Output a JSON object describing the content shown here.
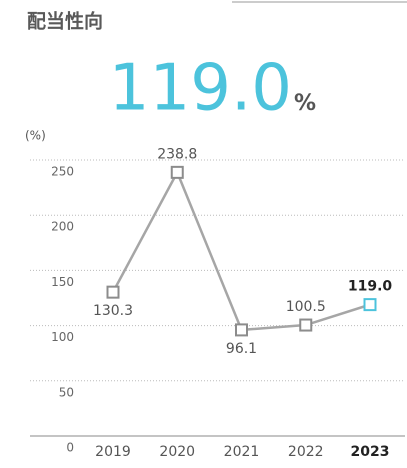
{
  "headline": {
    "value": "119.0",
    "unit": "%"
  },
  "chart_data": {
    "type": "line",
    "title": "配当性向",
    "ylabel": "(%)",
    "categories": [
      "2019",
      "2020",
      "2021",
      "2022",
      "2023"
    ],
    "series": [
      {
        "name": null,
        "color": "#a6a6a6",
        "values": [
          130.3,
          238.8,
          96.1,
          100.5,
          119.0
        ],
        "value_labels": [
          "130.3",
          "238.8",
          "96.1",
          "100.5",
          "119.0"
        ]
      }
    ],
    "highlight_index": 4,
    "highlight_color": "#4cc3dc",
    "ylim": [
      0,
      250
    ],
    "yticks": [
      0,
      50,
      100,
      150,
      200,
      250
    ],
    "grid": true
  }
}
